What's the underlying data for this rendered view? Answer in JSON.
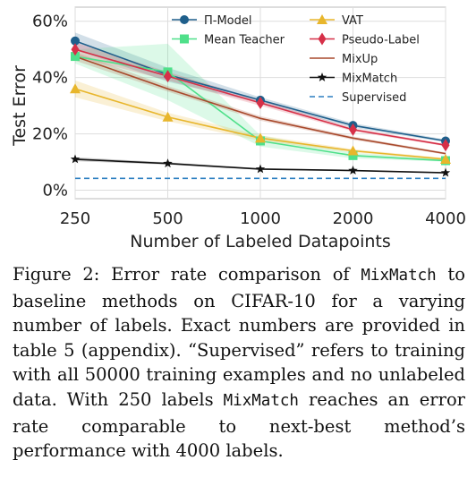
{
  "chart_data": {
    "type": "line",
    "xlabel": "Number of Labeled Datapoints",
    "ylabel": "Test Error",
    "x": [
      250,
      500,
      1000,
      2000,
      4000
    ],
    "x_tick_labels": [
      "250",
      "500",
      "1000",
      "2000",
      "4000"
    ],
    "x_scale": "log2",
    "ylim": [
      -3,
      65
    ],
    "y_ticks": [
      0,
      20,
      40,
      60
    ],
    "y_tick_labels": [
      "0%",
      "20%",
      "40%",
      "60%"
    ],
    "grid": true,
    "legend_position": "top-right",
    "series": [
      {
        "name": "Π-Model",
        "color": "#1f5f8b",
        "marker": "circle",
        "values": [
          53,
          41,
          32,
          23,
          17.5
        ],
        "band": [
          3,
          2.5,
          1,
          0.8,
          0.5
        ]
      },
      {
        "name": "Mean Teacher",
        "color": "#4fe08a",
        "marker": "square",
        "values": [
          47.5,
          42,
          17.5,
          12.3,
          10.5
        ],
        "band": [
          2.5,
          10,
          2,
          1,
          0.4
        ]
      },
      {
        "name": "VAT",
        "color": "#e8b62c",
        "marker": "triangle",
        "values": [
          36,
          26,
          18.5,
          14,
          11
        ],
        "band": [
          3,
          1.5,
          1,
          0.6,
          0.4
        ]
      },
      {
        "name": "Pseudo-Label",
        "color": "#d63048",
        "marker": "diamond",
        "values": [
          50,
          40.5,
          31,
          21.5,
          16
        ],
        "band": [
          2.5,
          1.5,
          1,
          0.6,
          0.4
        ]
      },
      {
        "name": "MixUp",
        "color": "#a8492c",
        "marker": "none",
        "values": [
          47.5,
          36,
          25.5,
          18.5,
          13
        ],
        "band": [
          1.5,
          1,
          0.8,
          0.6,
          0.4
        ]
      },
      {
        "name": "MixMatch",
        "color": "#111111",
        "marker": "star",
        "values": [
          11,
          9.5,
          7.5,
          7,
          6.2
        ],
        "band": [
          0.7,
          0.4,
          0.3,
          0.2,
          0.2
        ]
      },
      {
        "name": "Supervised",
        "color": "#2c7fc1",
        "marker": "none",
        "dashed": true,
        "values": [
          4.2,
          4.2,
          4.2,
          4.2,
          4.2
        ]
      }
    ]
  },
  "caption": {
    "label": "Figure 2:",
    "t1": " Error rate comparison of ",
    "mixmatch_1": "MixMatch",
    "t2": " to baseline methods on CIFAR-10 for a varying number of labels. Exact numbers are provided in table 5 (appendix). “Supervised” refers to training with all ",
    "num_50000": "50000",
    "t3": " training examples and no unlabeled data. With ",
    "num_250": "250",
    "t4": " labels ",
    "mixmatch_2": "MixMatch",
    "t5": " reaches an error rate comparable to next-best method’s performance with ",
    "num_4000": "4000",
    "t6": " labels."
  }
}
